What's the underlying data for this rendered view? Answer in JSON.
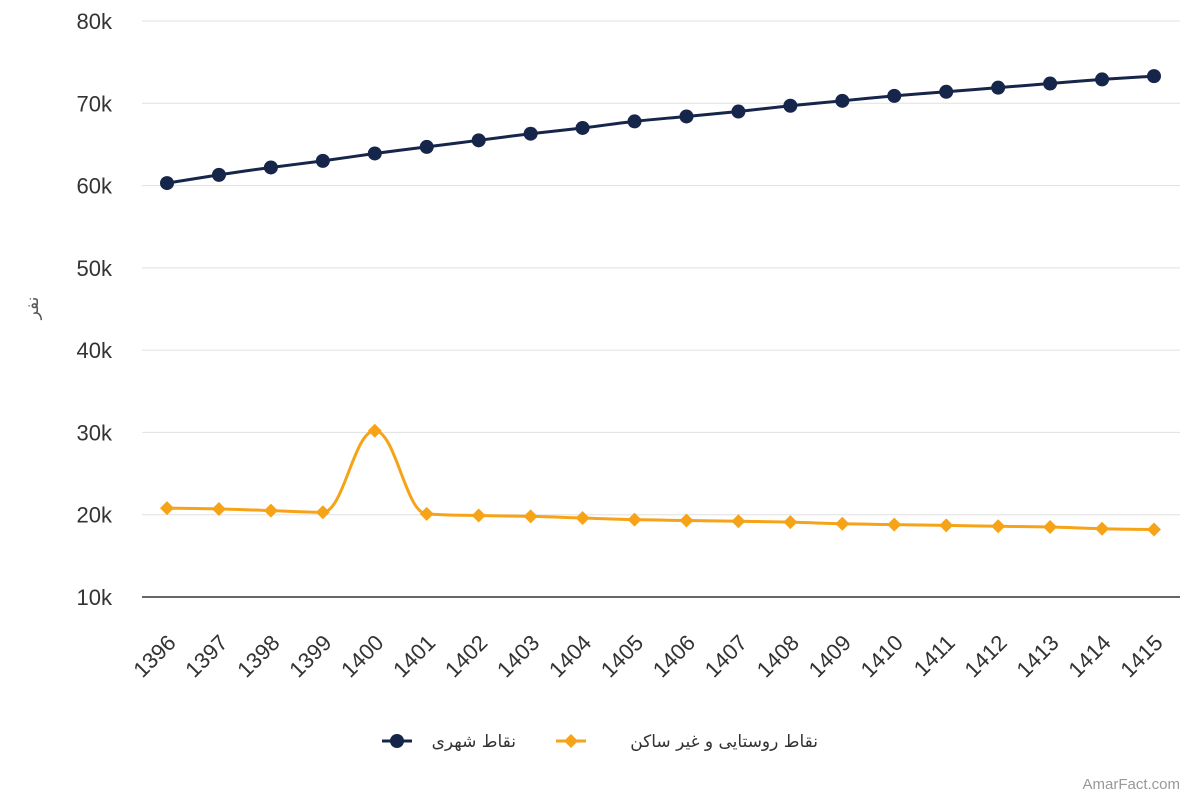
{
  "colors": {
    "urban": "#16254a",
    "rural": "#f6a318"
  },
  "chart_data": {
    "type": "line",
    "title": "",
    "xlabel": "",
    "ylabel": "نفر",
    "categories": [
      "1396",
      "1397",
      "1398",
      "1399",
      "1400",
      "1401",
      "1402",
      "1403",
      "1404",
      "1405",
      "1406",
      "1407",
      "1408",
      "1409",
      "1410",
      "1411",
      "1412",
      "1413",
      "1414",
      "1415"
    ],
    "y_ticks": [
      "10k",
      "20k",
      "30k",
      "40k",
      "50k",
      "60k",
      "70k",
      "80k"
    ],
    "ylim": [
      10000,
      80000
    ],
    "grid": true,
    "legend_position": "bottom",
    "series": [
      {
        "name": "نقاط شهری",
        "marker": "circle",
        "color": "#16254a",
        "values": [
          60300,
          61300,
          62200,
          63000,
          63900,
          64700,
          65500,
          66300,
          67000,
          67800,
          68400,
          69000,
          69700,
          70300,
          70900,
          71400,
          71900,
          72400,
          72900,
          73300
        ]
      },
      {
        "name": "نقاط روستایی و غیر ساکن",
        "marker": "diamond",
        "color": "#f6a318",
        "values": [
          20800,
          20700,
          20500,
          20300,
          30200,
          20100,
          19900,
          19800,
          19600,
          19400,
          19300,
          19200,
          19100,
          18900,
          18800,
          18700,
          18600,
          18500,
          18300,
          18200
        ]
      }
    ]
  },
  "credit": "AmarFact.com"
}
